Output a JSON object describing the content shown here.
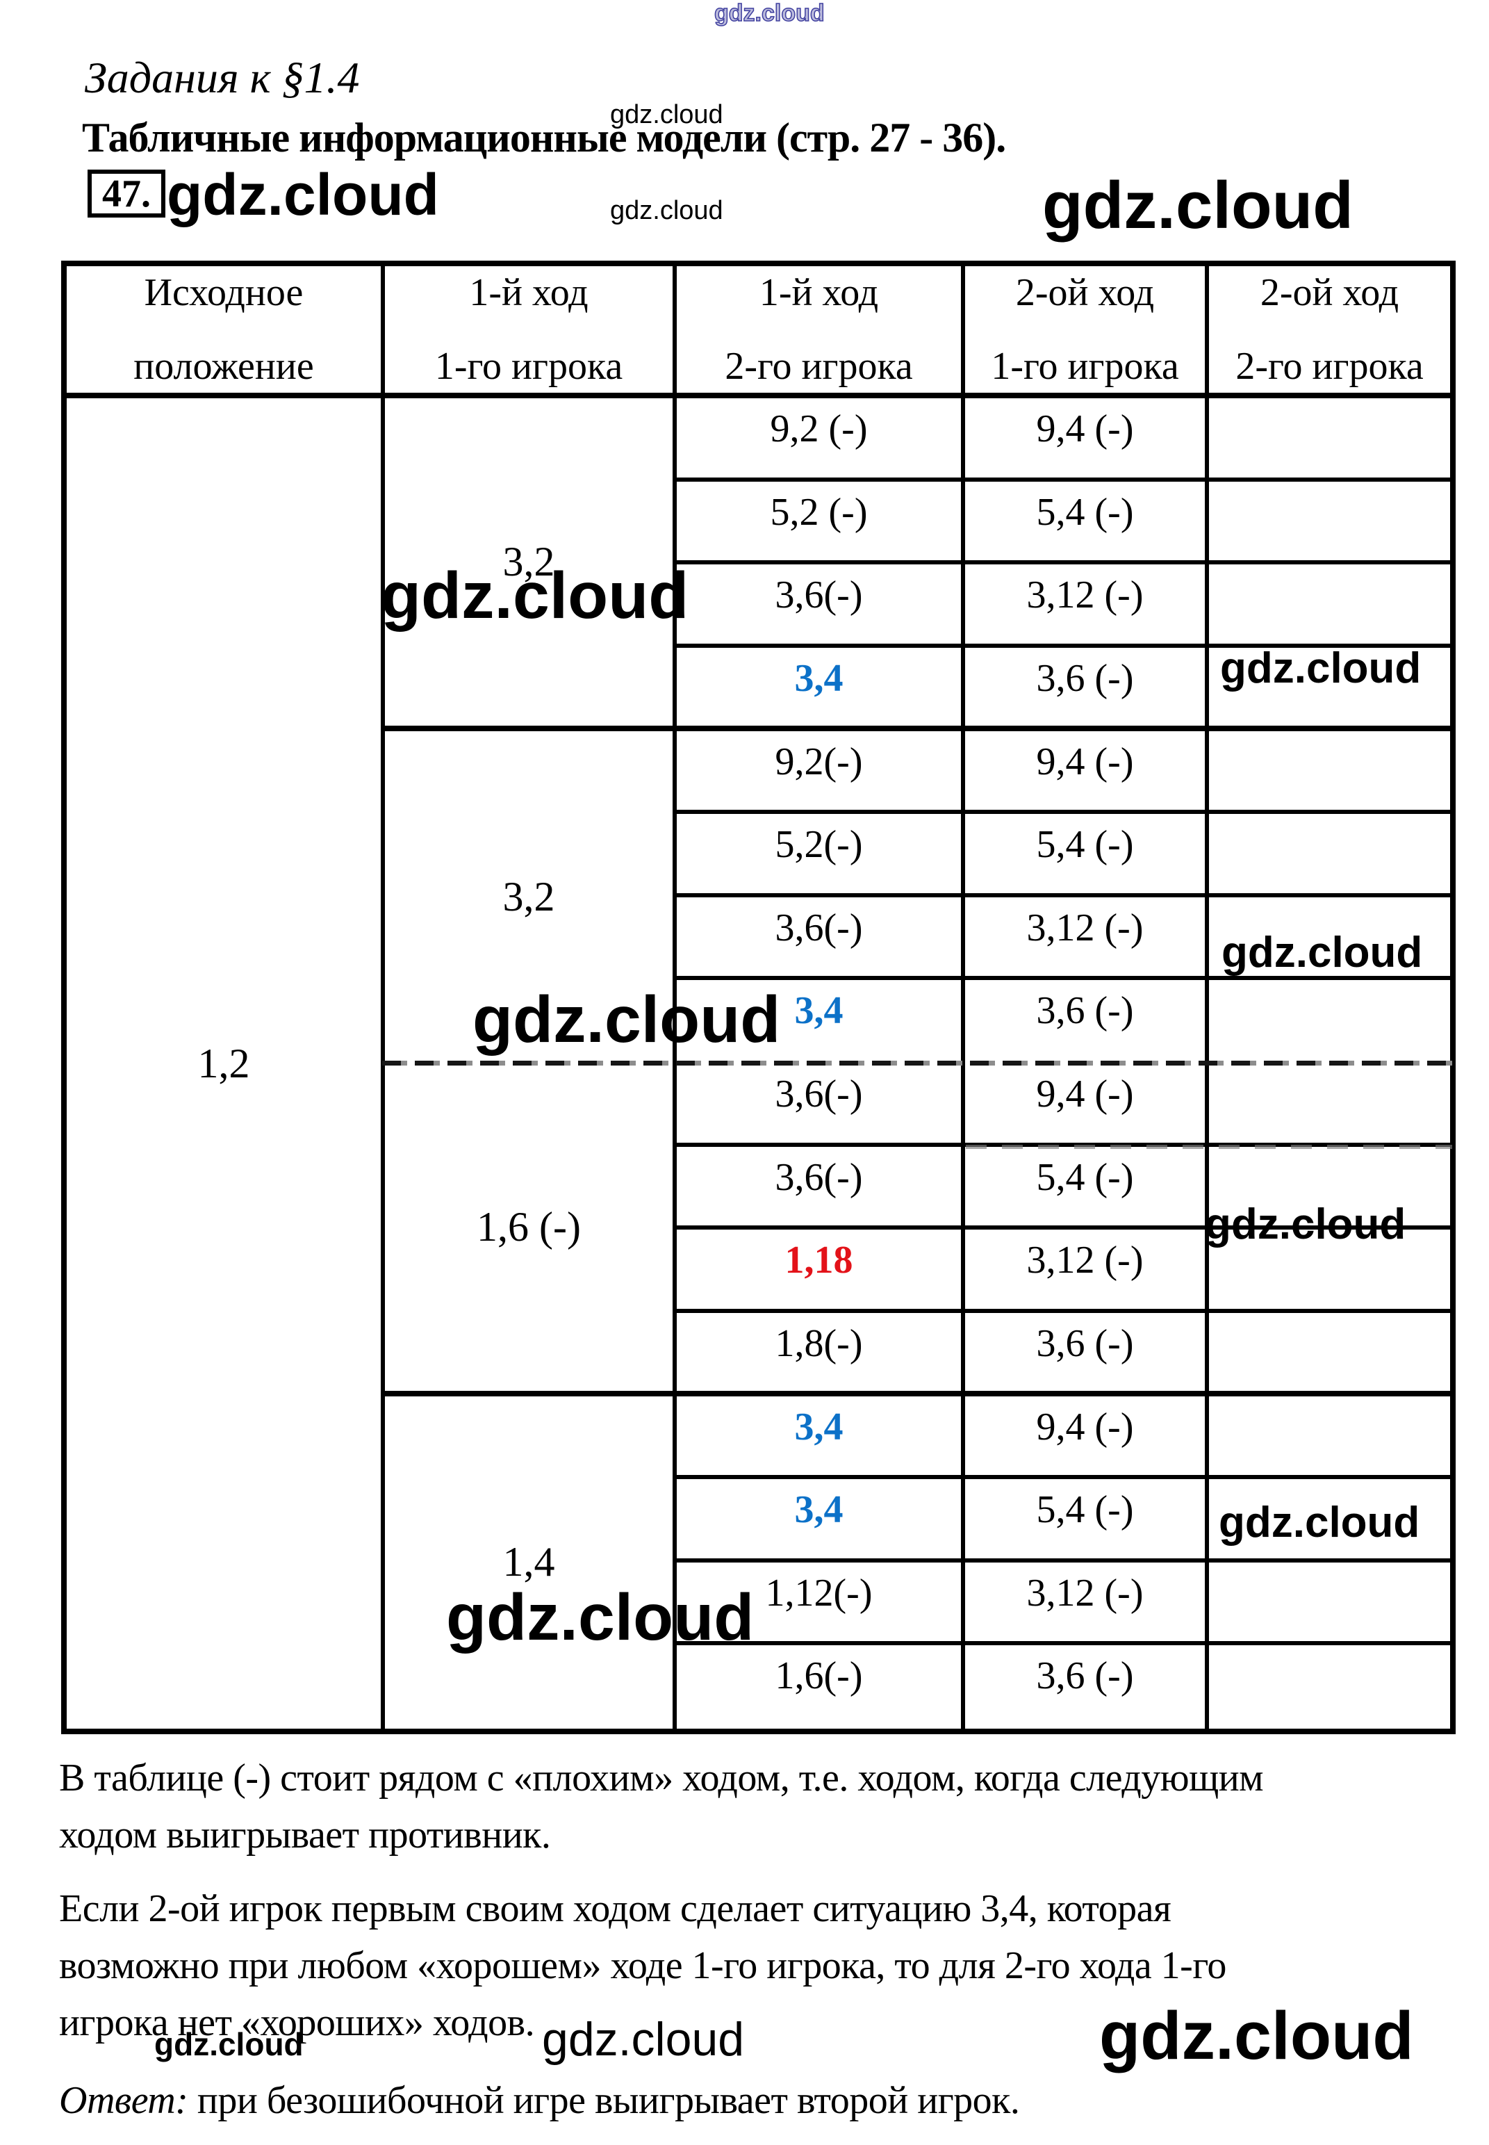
{
  "watermark": {
    "text": "gdz.cloud"
  },
  "header": {
    "section_title": "Задания к §1.4",
    "page_title": "Табличные информационные модели (стр. 27 - 36).",
    "task_number": "47."
  },
  "table": {
    "columns": [
      {
        "line1": "Исходное",
        "line2": "положение"
      },
      {
        "line1": "1-й ход",
        "line2": "1-го игрока"
      },
      {
        "line1": "1-й ход",
        "line2": "2-го игрока"
      },
      {
        "line1": "2-ой ход",
        "line2": "1-го игрока"
      },
      {
        "line1": "2-ой ход",
        "line2": "2-го игрока"
      }
    ],
    "initial_position": "1,2",
    "blocks": [
      {
        "first_move": "3,2",
        "rows": [
          {
            "move2": "9,2 (-)",
            "move2_color": "plain",
            "move3": "9,4 (-)"
          },
          {
            "move2": "5,2 (-)",
            "move2_color": "plain",
            "move3": "5,4 (-)"
          },
          {
            "move2": "3,6(-)",
            "move2_color": "plain",
            "move3": "3,12 (-)"
          },
          {
            "move2": "3,4",
            "move2_color": "blue",
            "move3": "3,6 (-)"
          }
        ]
      },
      {
        "first_move": "3,2",
        "rows": [
          {
            "move2": "9,2(-)",
            "move2_color": "plain",
            "move3": "9,4 (-)"
          },
          {
            "move2": "5,2(-)",
            "move2_color": "plain",
            "move3": "5,4 (-)"
          },
          {
            "move2": "3,6(-)",
            "move2_color": "plain",
            "move3": "3,12 (-)"
          },
          {
            "move2": "3,4",
            "move2_color": "blue",
            "move3": "3,6 (-)"
          }
        ]
      },
      {
        "first_move": "1,6 (-)",
        "rows": [
          {
            "move2": "3,6(-)",
            "move2_color": "plain",
            "move3": "9,4 (-)"
          },
          {
            "move2": "3,6(-)",
            "move2_color": "plain",
            "move3": "5,4 (-)"
          },
          {
            "move2": "1,18",
            "move2_color": "red",
            "move3": "3,12 (-)"
          },
          {
            "move2": "1,8(-)",
            "move2_color": "plain",
            "move3": "3,6 (-)"
          }
        ]
      },
      {
        "first_move": "1,4",
        "rows": [
          {
            "move2": "3,4",
            "move2_color": "blue",
            "move3": "9,4 (-)"
          },
          {
            "move2": "3,4",
            "move2_color": "blue",
            "move3": "5,4 (-)"
          },
          {
            "move2": "1,12(-)",
            "move2_color": "plain",
            "move3": "3,12 (-)"
          },
          {
            "move2": "1,6(-)",
            "move2_color": "plain",
            "move3": "3,6 (-)"
          }
        ]
      }
    ]
  },
  "body": {
    "paragraph1": [
      "В таблице (-) стоит рядом с «плохим» ходом, т.е. ходом, когда следующим",
      "ходом выигрывает противник."
    ],
    "paragraph2": [
      "Если 2-ой игрок первым своим ходом сделает ситуацию 3,4, которая",
      "возможно при любом «хорошем» ходе 1-го игрока, то для 2-го хода 1-го",
      "игрока нет «хороших» ходов."
    ],
    "answer_label": "Ответ:",
    "answer_text": " при безошибочной игре выигрывает второй игрок."
  },
  "colors": {
    "accent_blue": "#0c71c8",
    "accent_red": "#e31219",
    "ink": "#000000"
  }
}
